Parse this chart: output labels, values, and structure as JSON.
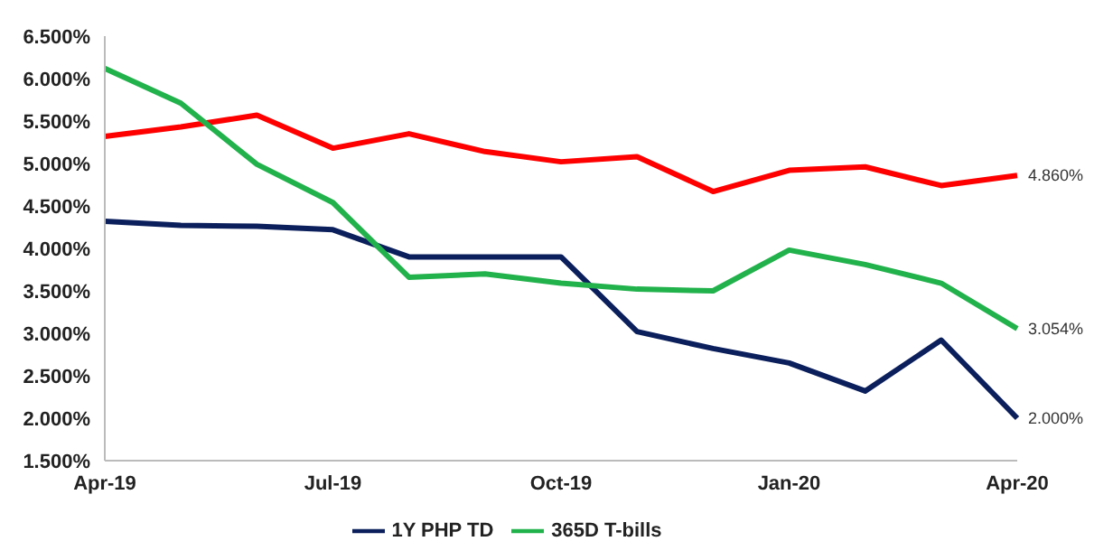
{
  "chart_data": {
    "type": "line",
    "categories": [
      "Apr-19",
      null,
      null,
      "Jul-19",
      null,
      null,
      "Oct-19",
      null,
      null,
      "Jan-20",
      null,
      null,
      "Apr-20"
    ],
    "ylim": [
      1.5,
      6.5
    ],
    "yticks": [
      {
        "value": 1.5,
        "label": "1.500%"
      },
      {
        "value": 2,
        "label": "2.000%"
      },
      {
        "value": 2.5,
        "label": "2.500%"
      },
      {
        "value": 3,
        "label": "3.000%"
      },
      {
        "value": 3.5,
        "label": "3.500%"
      },
      {
        "value": 4,
        "label": "4.000%"
      },
      {
        "value": 4.5,
        "label": "4.500%"
      },
      {
        "value": 5,
        "label": "5.000%"
      },
      {
        "value": 5.5,
        "label": "5.500%"
      },
      {
        "value": 6,
        "label": "6.000%"
      },
      {
        "value": 6.5,
        "label": "6.500%"
      }
    ],
    "series": [
      {
        "color": "#ff0000",
        "values": [
          5.32,
          5.43,
          5.57,
          5.18,
          5.35,
          5.14,
          5.02,
          5.08,
          4.67,
          4.92,
          4.96,
          4.74,
          4.86
        ],
        "value_labels": [
          null,
          null,
          null,
          null,
          null,
          null,
          null,
          null,
          null,
          null,
          null,
          null,
          "4.860%"
        ]
      },
      {
        "name": "1Y PHP TD",
        "color": "#0b1f5c",
        "values": [
          4.32,
          4.27,
          4.26,
          4.22,
          3.9,
          3.9,
          3.9,
          3.02,
          2.82,
          2.65,
          2.32,
          2.92,
          2.0
        ],
        "value_labels": [
          null,
          null,
          null,
          null,
          null,
          null,
          null,
          null,
          null,
          null,
          null,
          null,
          "2.000%"
        ]
      },
      {
        "name": "365D T-bills",
        "color": "#22b24c",
        "values": [
          6.12,
          5.71,
          4.99,
          4.54,
          3.66,
          3.7,
          3.59,
          3.52,
          3.5,
          3.98,
          3.81,
          3.59,
          3.054
        ],
        "value_labels": [
          null,
          null,
          null,
          null,
          null,
          null,
          null,
          null,
          null,
          null,
          null,
          null,
          "3.054%"
        ]
      }
    ],
    "grid": false,
    "legend": "bottom",
    "marker": "none",
    "line_style": "solid"
  }
}
